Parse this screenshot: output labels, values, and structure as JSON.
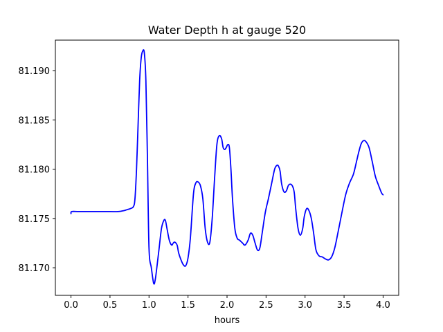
{
  "chart_data": {
    "type": "line",
    "title": "Water Depth h at gauge 520",
    "xlabel": "hours",
    "ylabel": "",
    "xlim": [
      -0.2,
      4.2
    ],
    "ylim": [
      81.1672,
      81.1931
    ],
    "x_ticks": [
      0.0,
      0.5,
      1.0,
      1.5,
      2.0,
      2.5,
      3.0,
      3.5,
      4.0
    ],
    "x_tick_labels": [
      "0.0",
      "0.5",
      "1.0",
      "1.5",
      "2.0",
      "2.5",
      "3.0",
      "3.5",
      "4.0"
    ],
    "y_ticks": [
      81.17,
      81.175,
      81.18,
      81.185,
      81.19
    ],
    "y_tick_labels": [
      "81.170",
      "81.175",
      "81.180",
      "81.185",
      "81.190"
    ],
    "grid": false,
    "legend": "none",
    "series": [
      {
        "color": "#0000ff",
        "x": [
          0.0,
          0.01,
          0.1,
          0.3,
          0.5,
          0.6,
          0.68,
          0.72,
          0.76,
          0.8,
          0.82,
          0.84,
          0.86,
          0.88,
          0.9,
          0.92,
          0.94,
          0.96,
          0.98,
          1.0,
          1.03,
          1.06,
          1.08,
          1.1,
          1.13,
          1.16,
          1.19,
          1.21,
          1.23,
          1.26,
          1.29,
          1.31,
          1.33,
          1.36,
          1.38,
          1.41,
          1.44,
          1.47,
          1.5,
          1.53,
          1.57,
          1.6,
          1.63,
          1.66,
          1.69,
          1.72,
          1.75,
          1.78,
          1.81,
          1.84,
          1.87,
          1.9,
          1.93,
          1.95,
          1.97,
          1.99,
          2.01,
          2.03,
          2.05,
          2.07,
          2.1,
          2.13,
          2.16,
          2.2,
          2.23,
          2.27,
          2.3,
          2.33,
          2.36,
          2.39,
          2.42,
          2.45,
          2.49,
          2.53,
          2.57,
          2.61,
          2.64,
          2.66,
          2.68,
          2.7,
          2.73,
          2.76,
          2.79,
          2.83,
          2.86,
          2.88,
          2.91,
          2.94,
          2.97,
          2.99,
          3.02,
          3.05,
          3.08,
          3.11,
          3.14,
          3.18,
          3.22,
          3.26,
          3.3,
          3.34,
          3.38,
          3.42,
          3.47,
          3.52,
          3.57,
          3.62,
          3.66,
          3.69,
          3.72,
          3.75,
          3.78,
          3.82,
          3.86,
          3.9,
          3.94,
          3.98,
          4.0
        ],
        "y": [
          81.1755,
          81.1757,
          81.1757,
          81.1757,
          81.1757,
          81.1757,
          81.1758,
          81.1759,
          81.176,
          81.1762,
          81.177,
          81.18,
          81.1845,
          81.189,
          81.1913,
          81.192,
          81.1918,
          81.189,
          81.181,
          81.172,
          81.17,
          81.1684,
          81.1688,
          81.17,
          81.172,
          81.174,
          81.1748,
          81.1748,
          81.174,
          81.1728,
          81.1723,
          81.1725,
          81.1726,
          81.1723,
          81.1715,
          81.1708,
          81.1703,
          81.1702,
          81.171,
          81.173,
          81.1775,
          81.1786,
          81.1787,
          81.1783,
          81.177,
          81.174,
          81.1726,
          81.1726,
          81.175,
          81.179,
          81.1825,
          81.1834,
          81.1831,
          81.1822,
          81.182,
          81.1822,
          81.1825,
          81.1822,
          81.18,
          81.177,
          81.174,
          81.173,
          81.1728,
          81.1725,
          81.1723,
          81.1728,
          81.1735,
          81.1733,
          81.1725,
          81.1718,
          81.172,
          81.1735,
          81.1756,
          81.177,
          81.1785,
          81.18,
          81.1804,
          81.1803,
          81.1798,
          81.1785,
          81.1777,
          81.1778,
          81.1784,
          81.1784,
          81.1777,
          81.176,
          81.174,
          81.1733,
          81.174,
          81.1752,
          81.176,
          81.1758,
          81.175,
          81.1735,
          81.1718,
          81.1712,
          81.1711,
          81.1709,
          81.1708,
          81.1711,
          81.172,
          81.1735,
          81.1755,
          81.1774,
          81.1786,
          81.1795,
          81.1808,
          81.1818,
          81.1826,
          81.1829,
          81.1828,
          81.1822,
          81.1808,
          81.1793,
          81.1784,
          81.1776,
          81.1774
        ]
      }
    ]
  }
}
